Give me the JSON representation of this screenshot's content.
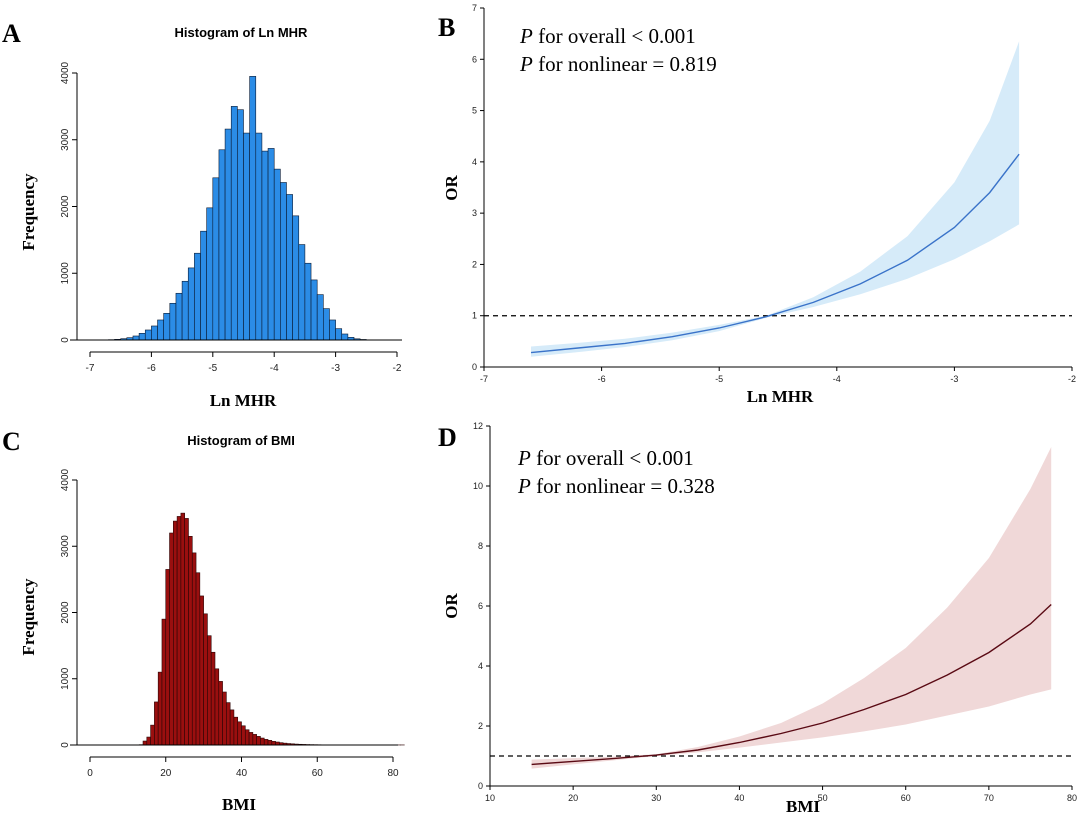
{
  "panels": {
    "A": "A",
    "B": "B",
    "C": "C",
    "D": "D"
  },
  "chart_data": [
    {
      "panel": "A",
      "type": "bar",
      "title": "Histogram of Ln MHR",
      "xlabel": "Ln MHR",
      "ylabel": "Frequency",
      "xlim": [
        -7,
        -2
      ],
      "ylim": [
        0,
        4000
      ],
      "xticks": [
        -7,
        -6,
        -5,
        -4,
        -3,
        -2
      ],
      "yticks": [
        0,
        1000,
        2000,
        3000,
        4000
      ],
      "bin_width": 0.1,
      "bin_start": -6.8,
      "values": [
        2,
        5,
        10,
        20,
        35,
        60,
        100,
        150,
        210,
        300,
        400,
        550,
        700,
        880,
        1080,
        1300,
        1630,
        1980,
        2430,
        2850,
        3160,
        3500,
        3450,
        3100,
        3950,
        3100,
        2830,
        2870,
        2560,
        2360,
        2180,
        1860,
        1430,
        1150,
        900,
        680,
        470,
        300,
        170,
        90,
        40,
        18,
        8,
        3
      ]
    },
    {
      "panel": "B",
      "type": "line",
      "xlabel": "Ln MHR",
      "ylabel": "OR",
      "xlim": [
        -7,
        -2
      ],
      "ylim": [
        0,
        7
      ],
      "xticks": [
        -7,
        -6,
        -5,
        -4,
        -3,
        -2
      ],
      "yticks": [
        0,
        1,
        2,
        3,
        4,
        5,
        6,
        7
      ],
      "reference_line": 1,
      "annotations": [
        {
          "italic": "P",
          "text": " for overall < 0.001"
        },
        {
          "italic": "P",
          "text": " for nonlinear = 0.819"
        }
      ],
      "x": [
        -6.6,
        -6.2,
        -5.8,
        -5.4,
        -5.0,
        -4.6,
        -4.2,
        -3.8,
        -3.4,
        -3.0,
        -2.7,
        -2.45
      ],
      "y": [
        0.28,
        0.37,
        0.46,
        0.59,
        0.76,
        0.98,
        1.26,
        1.62,
        2.08,
        2.72,
        3.4,
        4.15
      ],
      "ci_lower": [
        0.2,
        0.29,
        0.39,
        0.52,
        0.7,
        0.96,
        1.17,
        1.42,
        1.72,
        2.1,
        2.45,
        2.78
      ],
      "ci_upper": [
        0.4,
        0.47,
        0.55,
        0.67,
        0.82,
        1.0,
        1.36,
        1.86,
        2.55,
        3.6,
        4.8,
        6.35
      ],
      "line_color": "#3a73c9",
      "band_color": "#d6ebf9"
    },
    {
      "panel": "C",
      "type": "bar",
      "title": "Histogram of BMI",
      "xlabel": "BMI",
      "ylabel": "Frequency",
      "xlim": [
        0,
        80
      ],
      "ylim": [
        0,
        4000
      ],
      "xticks": [
        0,
        20,
        40,
        60,
        80
      ],
      "yticks": [
        0,
        1000,
        2000,
        3000,
        4000
      ],
      "bin_width": 1,
      "bin_start": 13,
      "values": [
        5,
        60,
        120,
        300,
        650,
        1100,
        1900,
        2650,
        3200,
        3380,
        3450,
        3500,
        3420,
        3150,
        2900,
        2600,
        2250,
        1980,
        1650,
        1400,
        1150,
        960,
        800,
        640,
        530,
        420,
        350,
        290,
        230,
        190,
        160,
        130,
        105,
        85,
        70,
        55,
        45,
        35,
        28,
        22,
        18,
        14,
        11,
        9,
        7,
        6,
        5,
        4,
        3,
        3,
        2,
        2,
        2,
        1,
        1,
        1,
        1,
        1,
        1,
        1,
        1,
        1,
        1,
        1,
        1,
        1,
        1,
        1,
        1,
        1
      ]
    },
    {
      "panel": "D",
      "type": "line",
      "xlabel": "BMI",
      "ylabel": "OR",
      "xlim": [
        10,
        80
      ],
      "ylim": [
        0,
        12
      ],
      "xticks": [
        10,
        20,
        30,
        40,
        50,
        60,
        70,
        80
      ],
      "yticks": [
        0,
        2,
        4,
        6,
        8,
        10,
        12
      ],
      "reference_line": 1,
      "annotations": [
        {
          "italic": "P",
          "text": " for overall < 0.001"
        },
        {
          "italic": "P",
          "text": " for nonlinear = 0.328"
        }
      ],
      "x": [
        15,
        20,
        25,
        30,
        35,
        40,
        45,
        50,
        55,
        60,
        65,
        70,
        75,
        77.5
      ],
      "y": [
        0.72,
        0.82,
        0.92,
        1.03,
        1.2,
        1.45,
        1.75,
        2.1,
        2.55,
        3.05,
        3.7,
        4.45,
        5.4,
        6.05
      ],
      "ci_lower": [
        0.58,
        0.72,
        0.86,
        1.0,
        1.12,
        1.28,
        1.45,
        1.62,
        1.82,
        2.05,
        2.35,
        2.65,
        3.05,
        3.22
      ],
      "ci_upper": [
        0.88,
        0.93,
        0.98,
        1.06,
        1.3,
        1.65,
        2.1,
        2.75,
        3.6,
        4.6,
        5.95,
        7.6,
        9.9,
        11.3
      ],
      "line_color": "#5a0a14",
      "band_color": "#f0d8d8"
    }
  ]
}
